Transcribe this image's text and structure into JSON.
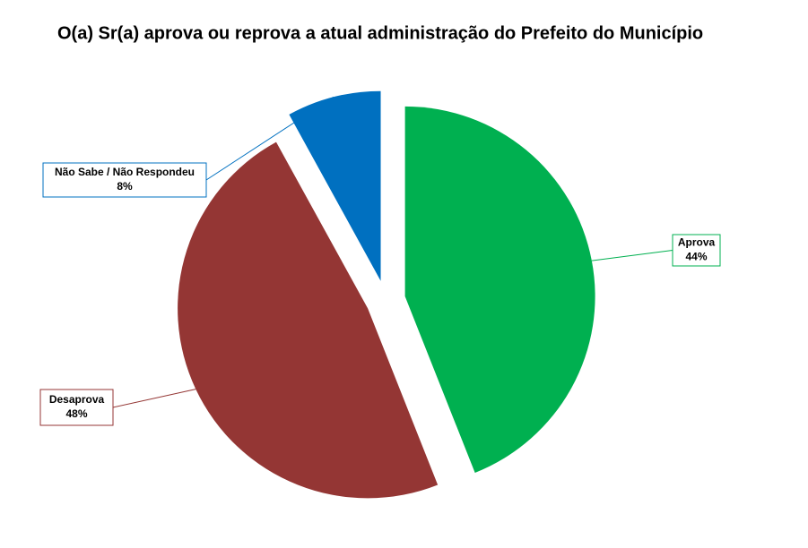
{
  "chart_data": {
    "type": "pie",
    "title": "O(a) Sr(a) aprova ou reprova a atual administração do Prefeito do Município",
    "categories": [
      "Aprova",
      "Desaprova",
      "Não Sabe / Não Respondeu"
    ],
    "values": [
      44,
      48,
      8
    ],
    "value_labels": [
      "44%",
      "48%",
      "8%"
    ],
    "colors": [
      "#00b050",
      "#943634",
      "#0070c0"
    ]
  }
}
